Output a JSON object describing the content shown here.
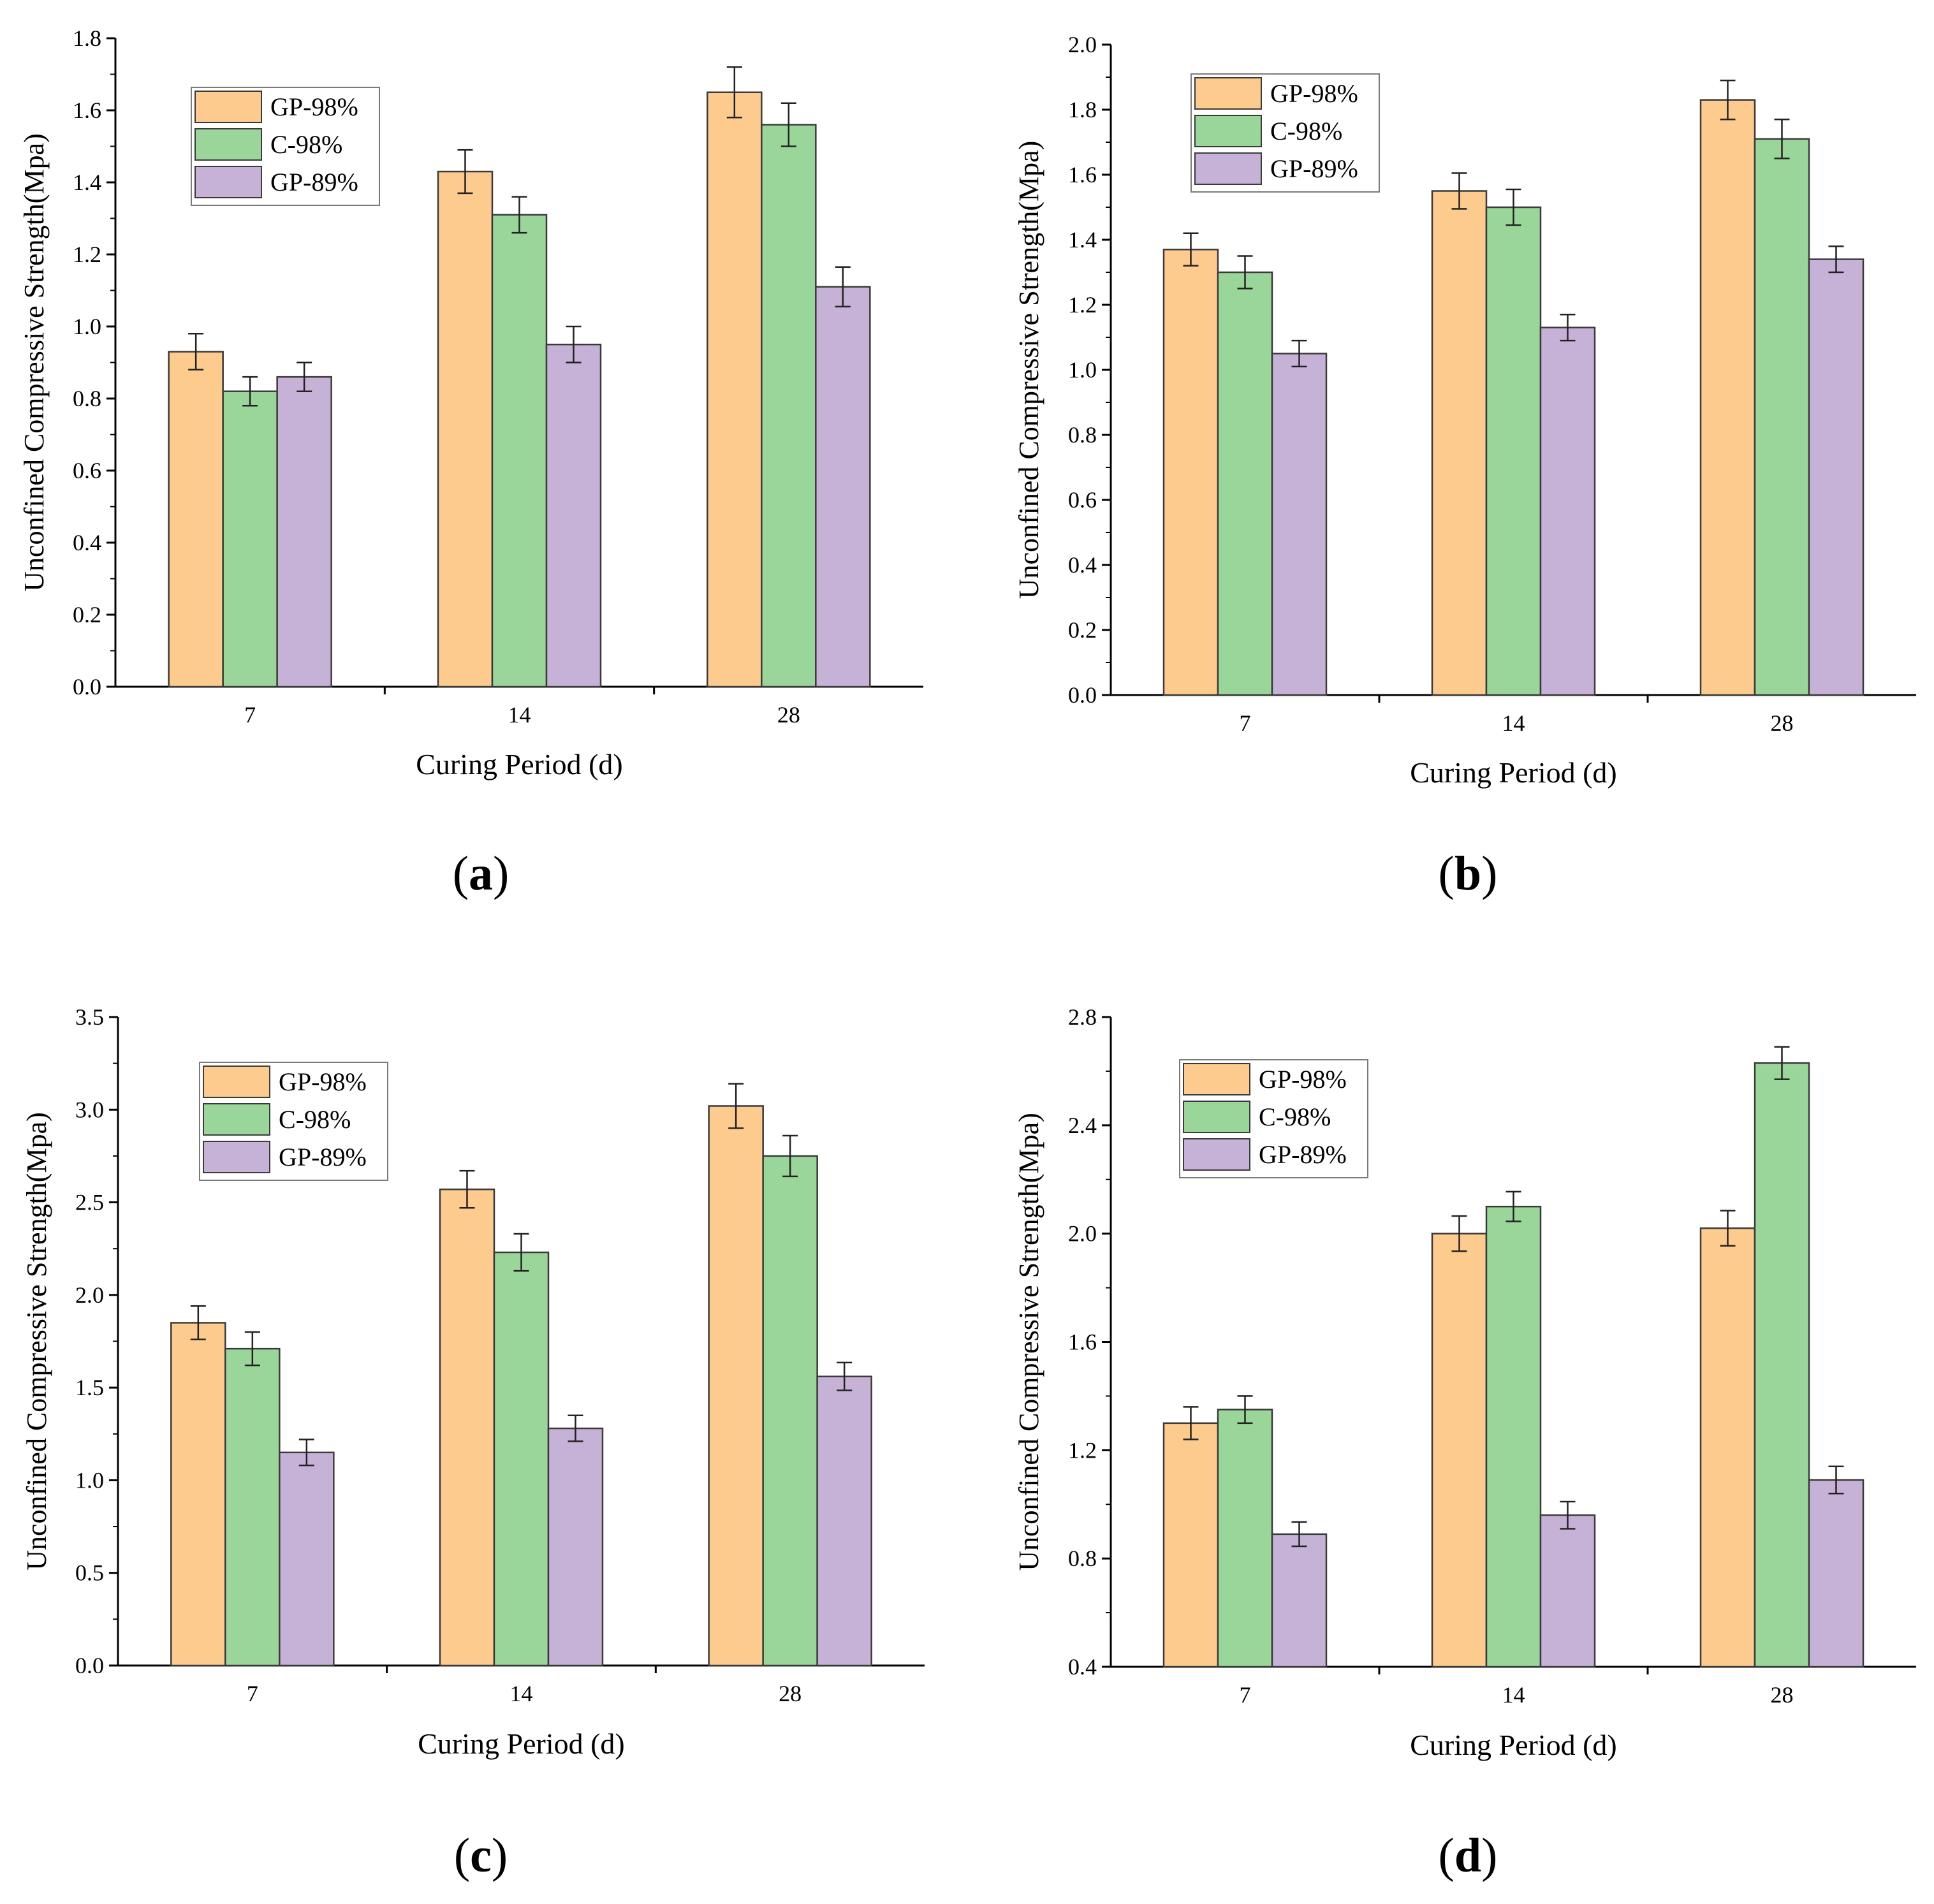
{
  "figure": {
    "panels": [
      "a",
      "b",
      "c",
      "d"
    ]
  },
  "colors": {
    "GP-98%": "#FECB8F",
    "C-98%": "#9AD699",
    "GP-89%": "#C6B2D7",
    "axis": "#000000",
    "bar_stroke": "#3a3a3a"
  },
  "chart_data": [
    {
      "type": "bar",
      "panel": "a",
      "panel_label": "a",
      "xlabel": "Curing Period (d)",
      "ylabel": "Unconfined Compressive Strength(Mpa)",
      "ylim": [
        0,
        1.8
      ],
      "ytick_step": 0.2,
      "yticks": [
        "0.0",
        "0.2",
        "0.4",
        "0.6",
        "0.8",
        "1.0",
        "1.2",
        "1.4",
        "1.6",
        "1.8"
      ],
      "categories": [
        "7",
        "14",
        "28"
      ],
      "legend_position": "top-left",
      "series": [
        {
          "name": "GP-98%",
          "values": [
            0.93,
            1.43,
            1.65
          ],
          "errors": [
            0.05,
            0.06,
            0.07
          ]
        },
        {
          "name": "C-98%",
          "values": [
            0.82,
            1.31,
            1.56
          ],
          "errors": [
            0.04,
            0.05,
            0.06
          ]
        },
        {
          "name": "GP-89%",
          "values": [
            0.86,
            0.95,
            1.11
          ],
          "errors": [
            0.04,
            0.05,
            0.055
          ]
        }
      ]
    },
    {
      "type": "bar",
      "panel": "b",
      "panel_label": "b",
      "xlabel": "Curing Period (d)",
      "ylabel": "Unconfined Compressive Strength(Mpa)",
      "ylim": [
        0,
        2.0
      ],
      "ytick_step": 0.2,
      "yticks": [
        "0.0",
        "0.2",
        "0.4",
        "0.6",
        "0.8",
        "1.0",
        "1.2",
        "1.4",
        "1.6",
        "1.8",
        "2.0"
      ],
      "categories": [
        "7",
        "14",
        "28"
      ],
      "legend_position": "top-left",
      "series": [
        {
          "name": "GP-98%",
          "values": [
            1.37,
            1.55,
            1.83
          ],
          "errors": [
            0.05,
            0.055,
            0.06
          ]
        },
        {
          "name": "C-98%",
          "values": [
            1.3,
            1.5,
            1.71
          ],
          "errors": [
            0.05,
            0.055,
            0.06
          ]
        },
        {
          "name": "GP-89%",
          "values": [
            1.05,
            1.13,
            1.34
          ],
          "errors": [
            0.04,
            0.04,
            0.04
          ]
        }
      ]
    },
    {
      "type": "bar",
      "panel": "c",
      "panel_label": "c",
      "xlabel": "Curing Period (d)",
      "ylabel": "Unconfined Compressive Strength(Mpa)",
      "ylim": [
        0,
        3.5
      ],
      "ytick_step": 0.5,
      "yticks": [
        "0.0",
        "0.5",
        "1.0",
        "1.5",
        "2.0",
        "2.5",
        "3.0",
        "3.5"
      ],
      "categories": [
        "7",
        "14",
        "28"
      ],
      "legend_position": "top-left",
      "series": [
        {
          "name": "GP-98%",
          "values": [
            1.85,
            2.57,
            3.02
          ],
          "errors": [
            0.09,
            0.1,
            0.12
          ]
        },
        {
          "name": "C-98%",
          "values": [
            1.71,
            2.23,
            2.75
          ],
          "errors": [
            0.09,
            0.1,
            0.11
          ]
        },
        {
          "name": "GP-89%",
          "values": [
            1.15,
            1.28,
            1.56
          ],
          "errors": [
            0.07,
            0.07,
            0.075
          ]
        }
      ]
    },
    {
      "type": "bar",
      "panel": "d",
      "panel_label": "d",
      "xlabel": "Curing Period (d)",
      "ylabel": "Unconfined Compressive Strength(Mpa)",
      "ylim": [
        0.4,
        2.8
      ],
      "ytick_step": 0.4,
      "yticks": [
        "0.4",
        "0.8",
        "1.2",
        "1.6",
        "2.0",
        "2.4",
        "2.8"
      ],
      "categories": [
        "7",
        "14",
        "28"
      ],
      "legend_position": "top-left",
      "series": [
        {
          "name": "GP-98%",
          "values": [
            1.3,
            2.0,
            2.02
          ],
          "errors": [
            0.06,
            0.065,
            0.065
          ]
        },
        {
          "name": "C-98%",
          "values": [
            1.35,
            2.1,
            2.63
          ],
          "errors": [
            0.05,
            0.055,
            0.06
          ]
        },
        {
          "name": "GP-89%",
          "values": [
            0.89,
            0.96,
            1.09
          ],
          "errors": [
            0.045,
            0.05,
            0.05
          ]
        }
      ]
    }
  ]
}
